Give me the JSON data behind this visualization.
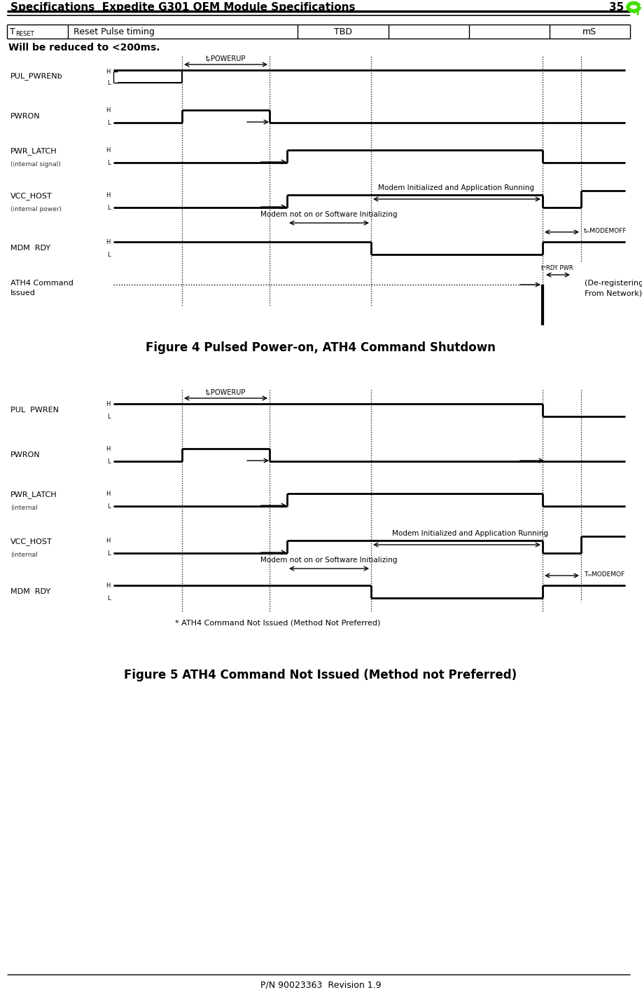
{
  "title": "Specifications  Expedite G301 OEM Module Specifications",
  "page_num": "35",
  "footer": "P/N 90023363  Revision 1.9",
  "subtitle": "Will be reduced to <200ms.",
  "fig4_title": "Figure 4 Pulsed Power-on, ATH4 Command Shutdown",
  "fig5_title": "Figure 5 ATH4 Command Not Issued (Method not Preferred)",
  "fig4_note": "* ATH4 Command Not Issued (Method Not Preferred)",
  "bg_color": "#ffffff"
}
